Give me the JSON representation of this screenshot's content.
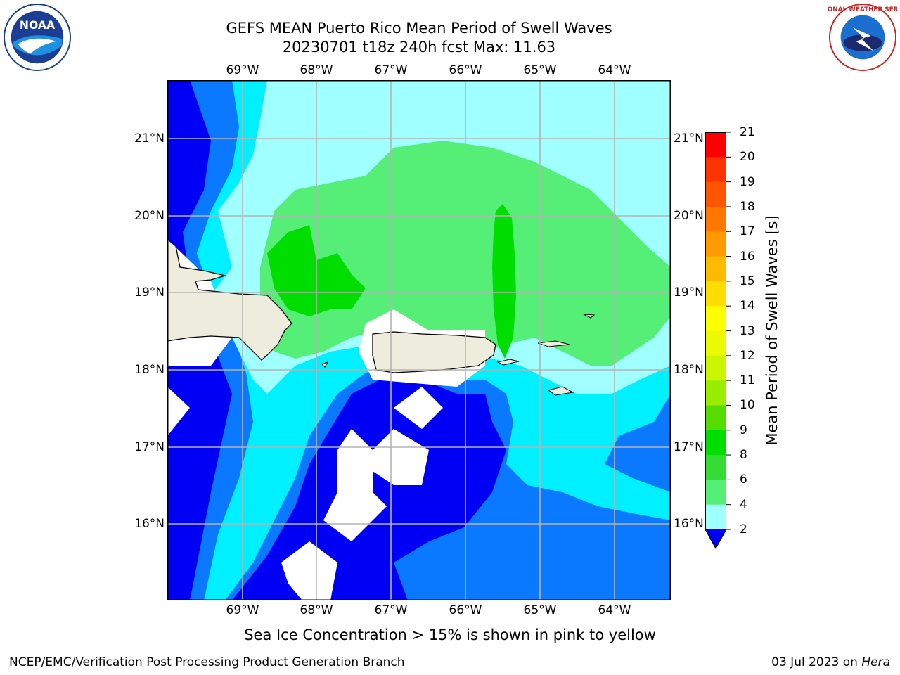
{
  "title_line1": "GEFS MEAN Puerto Rico Mean Period of Swell Waves",
  "title_line2": "20230701 t18z 240h fcst   Max: 11.63",
  "longitude_ticks": [
    "69°W",
    "68°W",
    "67°W",
    "66°W",
    "65°W",
    "64°W"
  ],
  "latitude_ticks": [
    "21°N",
    "20°N",
    "19°N",
    "18°N",
    "17°N",
    "16°N"
  ],
  "colorbar": {
    "label": "Mean Period of Swell Waves [s]",
    "ticks": [
      "21",
      "20",
      "19",
      "18",
      "17",
      "16",
      "15",
      "14",
      "13",
      "12",
      "11",
      "10",
      "9",
      "8",
      "6",
      "4",
      "2"
    ],
    "colors": [
      "#0000f5",
      "#0a78ff",
      "#00f0ff",
      "#50f5ff",
      "#a0ffff",
      "#55ee77",
      "#33dd33",
      "#00dd00",
      "#55dd00",
      "#99ee00",
      "#ccf500",
      "#ecfa00",
      "#ffff00",
      "#ffdd00",
      "#ffbb00",
      "#ff9900",
      "#ff7700",
      "#ff5500",
      "#ff3300",
      "#ff0000"
    ]
  },
  "note": "Sea Ice Concentration > 15% is shown in pink to yellow",
  "footer_left": "NCEP/EMC/Verification Post Processing Product Generation Branch",
  "footer_date": "03 Jul 2023 on",
  "footer_machine": "Hera",
  "logos": {
    "left": "NOAA",
    "right": "NATIONAL WEATHER SERVICE"
  },
  "map_colors": {
    "land": "#eeecdd",
    "grid": "#b4b4b4",
    "no_data": "#ffffff"
  }
}
